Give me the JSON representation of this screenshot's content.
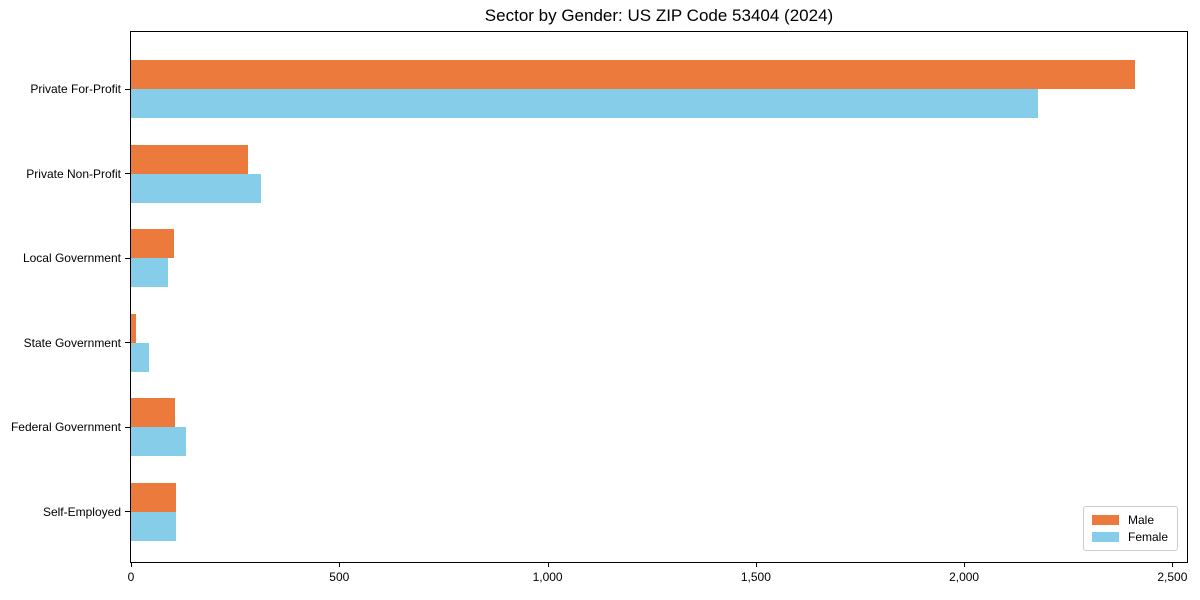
{
  "figure": {
    "background": "#ffffff"
  },
  "chart_data": {
    "type": "bar",
    "orientation": "horizontal",
    "title": "Sector by Gender: US ZIP Code 53404 (2024)",
    "categories": [
      "Private For-Profit",
      "Private Non-Profit",
      "Local Government",
      "State Government",
      "Federal Government",
      "Self-Employed"
    ],
    "series": [
      {
        "name": "Male",
        "color": "#ec7a3c",
        "values": [
          2411,
          281,
          102,
          11,
          106,
          109
        ]
      },
      {
        "name": "Female",
        "color": "#85cde8",
        "values": [
          2178,
          311,
          88,
          44,
          133,
          107
        ]
      }
    ],
    "xlabel": "",
    "ylabel": "",
    "xlim": [
      0,
      2535
    ],
    "xticks": [
      0,
      500,
      1000,
      1500,
      2000,
      2500
    ],
    "xtick_labels": [
      "0",
      "500",
      "1,000",
      "1,500",
      "2,000",
      "2,500"
    ],
    "grid": false,
    "legend": {
      "position": "lower right",
      "entries": [
        "Male",
        "Female"
      ]
    }
  }
}
